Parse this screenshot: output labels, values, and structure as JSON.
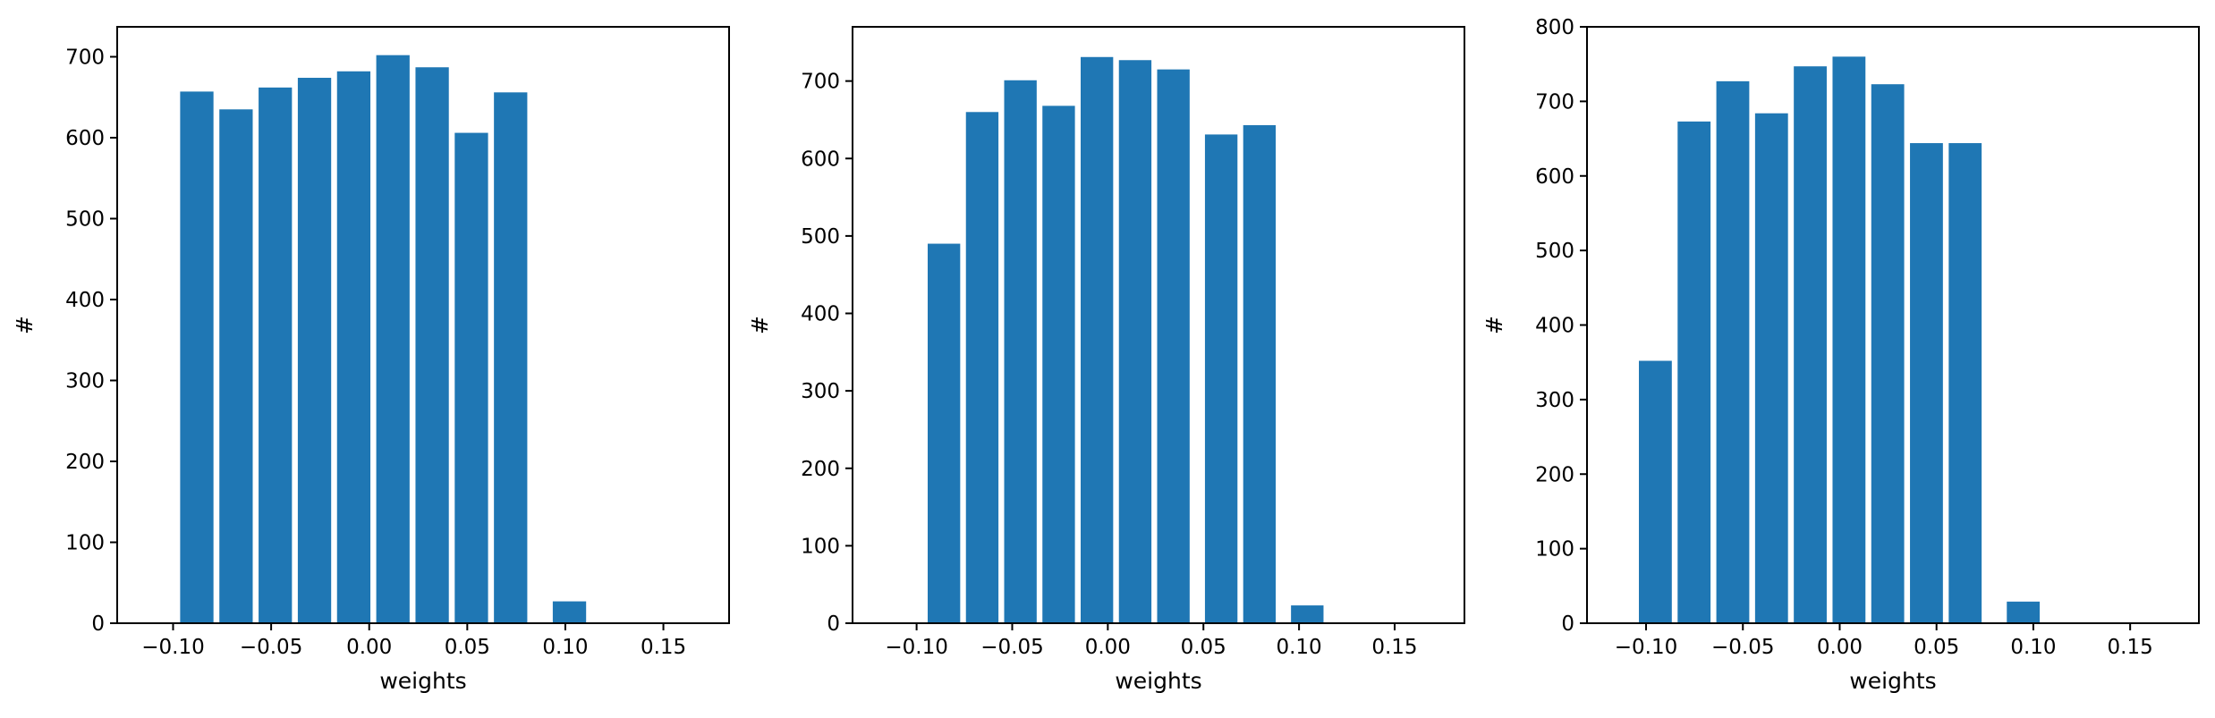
{
  "figure": {
    "background": "#ffffff"
  },
  "chart_data": [
    {
      "type": "bar",
      "bar_color": "#1f77b4",
      "x": [
        -0.0879,
        -0.0679,
        -0.0479,
        -0.0279,
        -0.0079,
        0.0121,
        0.0321,
        0.0521,
        0.0721,
        0.1021
      ],
      "values": [
        657,
        635,
        662,
        674,
        682,
        702,
        687,
        606,
        656,
        27
      ],
      "bar_width": 0.017,
      "xlabel": "weights",
      "ylabel": "#",
      "xlim": [
        -0.1285,
        0.1835
      ],
      "ylim": [
        0,
        737
      ],
      "xticks": [
        -0.1,
        -0.05,
        0.0,
        0.05,
        0.1,
        0.15
      ],
      "xticklabels": [
        "−0.10",
        "−0.05",
        "0.00",
        "0.05",
        "0.10",
        "0.15"
      ],
      "yticks": [
        0,
        100,
        200,
        300,
        400,
        500,
        600,
        700
      ],
      "yticklabels": [
        "0",
        "100",
        "200",
        "300",
        "400",
        "500",
        "600",
        "700"
      ]
    },
    {
      "type": "bar",
      "bar_color": "#1f77b4",
      "x": [
        -0.0857,
        -0.0657,
        -0.0457,
        -0.0257,
        -0.0057,
        0.0143,
        0.0343,
        0.0593,
        0.0793,
        0.1043
      ],
      "values": [
        490,
        660,
        701,
        668,
        731,
        727,
        715,
        631,
        643,
        23
      ],
      "bar_width": 0.017,
      "xlabel": "weights",
      "ylabel": "#",
      "xlim": [
        -0.1335,
        0.1865
      ],
      "ylim": [
        0,
        770
      ],
      "xticks": [
        -0.1,
        -0.05,
        0.0,
        0.05,
        0.1,
        0.15
      ],
      "xticklabels": [
        "−0.10",
        "−0.05",
        "0.00",
        "0.05",
        "0.10",
        "0.15"
      ],
      "yticks": [
        0,
        100,
        200,
        300,
        400,
        500,
        600,
        700
      ],
      "yticklabels": [
        "0",
        "100",
        "200",
        "300",
        "400",
        "500",
        "600",
        "700"
      ]
    },
    {
      "type": "bar",
      "bar_color": "#1f77b4",
      "x": [
        -0.0952,
        -0.0752,
        -0.0552,
        -0.0352,
        -0.0152,
        0.0048,
        0.0248,
        0.0448,
        0.0648,
        0.0948
      ],
      "values": [
        352,
        673,
        727,
        684,
        747,
        760,
        723,
        644,
        644,
        29
      ],
      "bar_width": 0.017,
      "xlabel": "weights",
      "ylabel": "#",
      "xlim": [
        -0.1305,
        0.1855
      ],
      "ylim": [
        0,
        800
      ],
      "xticks": [
        -0.1,
        -0.05,
        0.0,
        0.05,
        0.1,
        0.15
      ],
      "xticklabels": [
        "−0.10",
        "−0.05",
        "0.00",
        "0.05",
        "0.10",
        "0.15"
      ],
      "yticks": [
        0,
        100,
        200,
        300,
        400,
        500,
        600,
        700,
        800
      ],
      "yticklabels": [
        "0",
        "100",
        "200",
        "300",
        "400",
        "500",
        "600",
        "700",
        "800"
      ]
    }
  ]
}
